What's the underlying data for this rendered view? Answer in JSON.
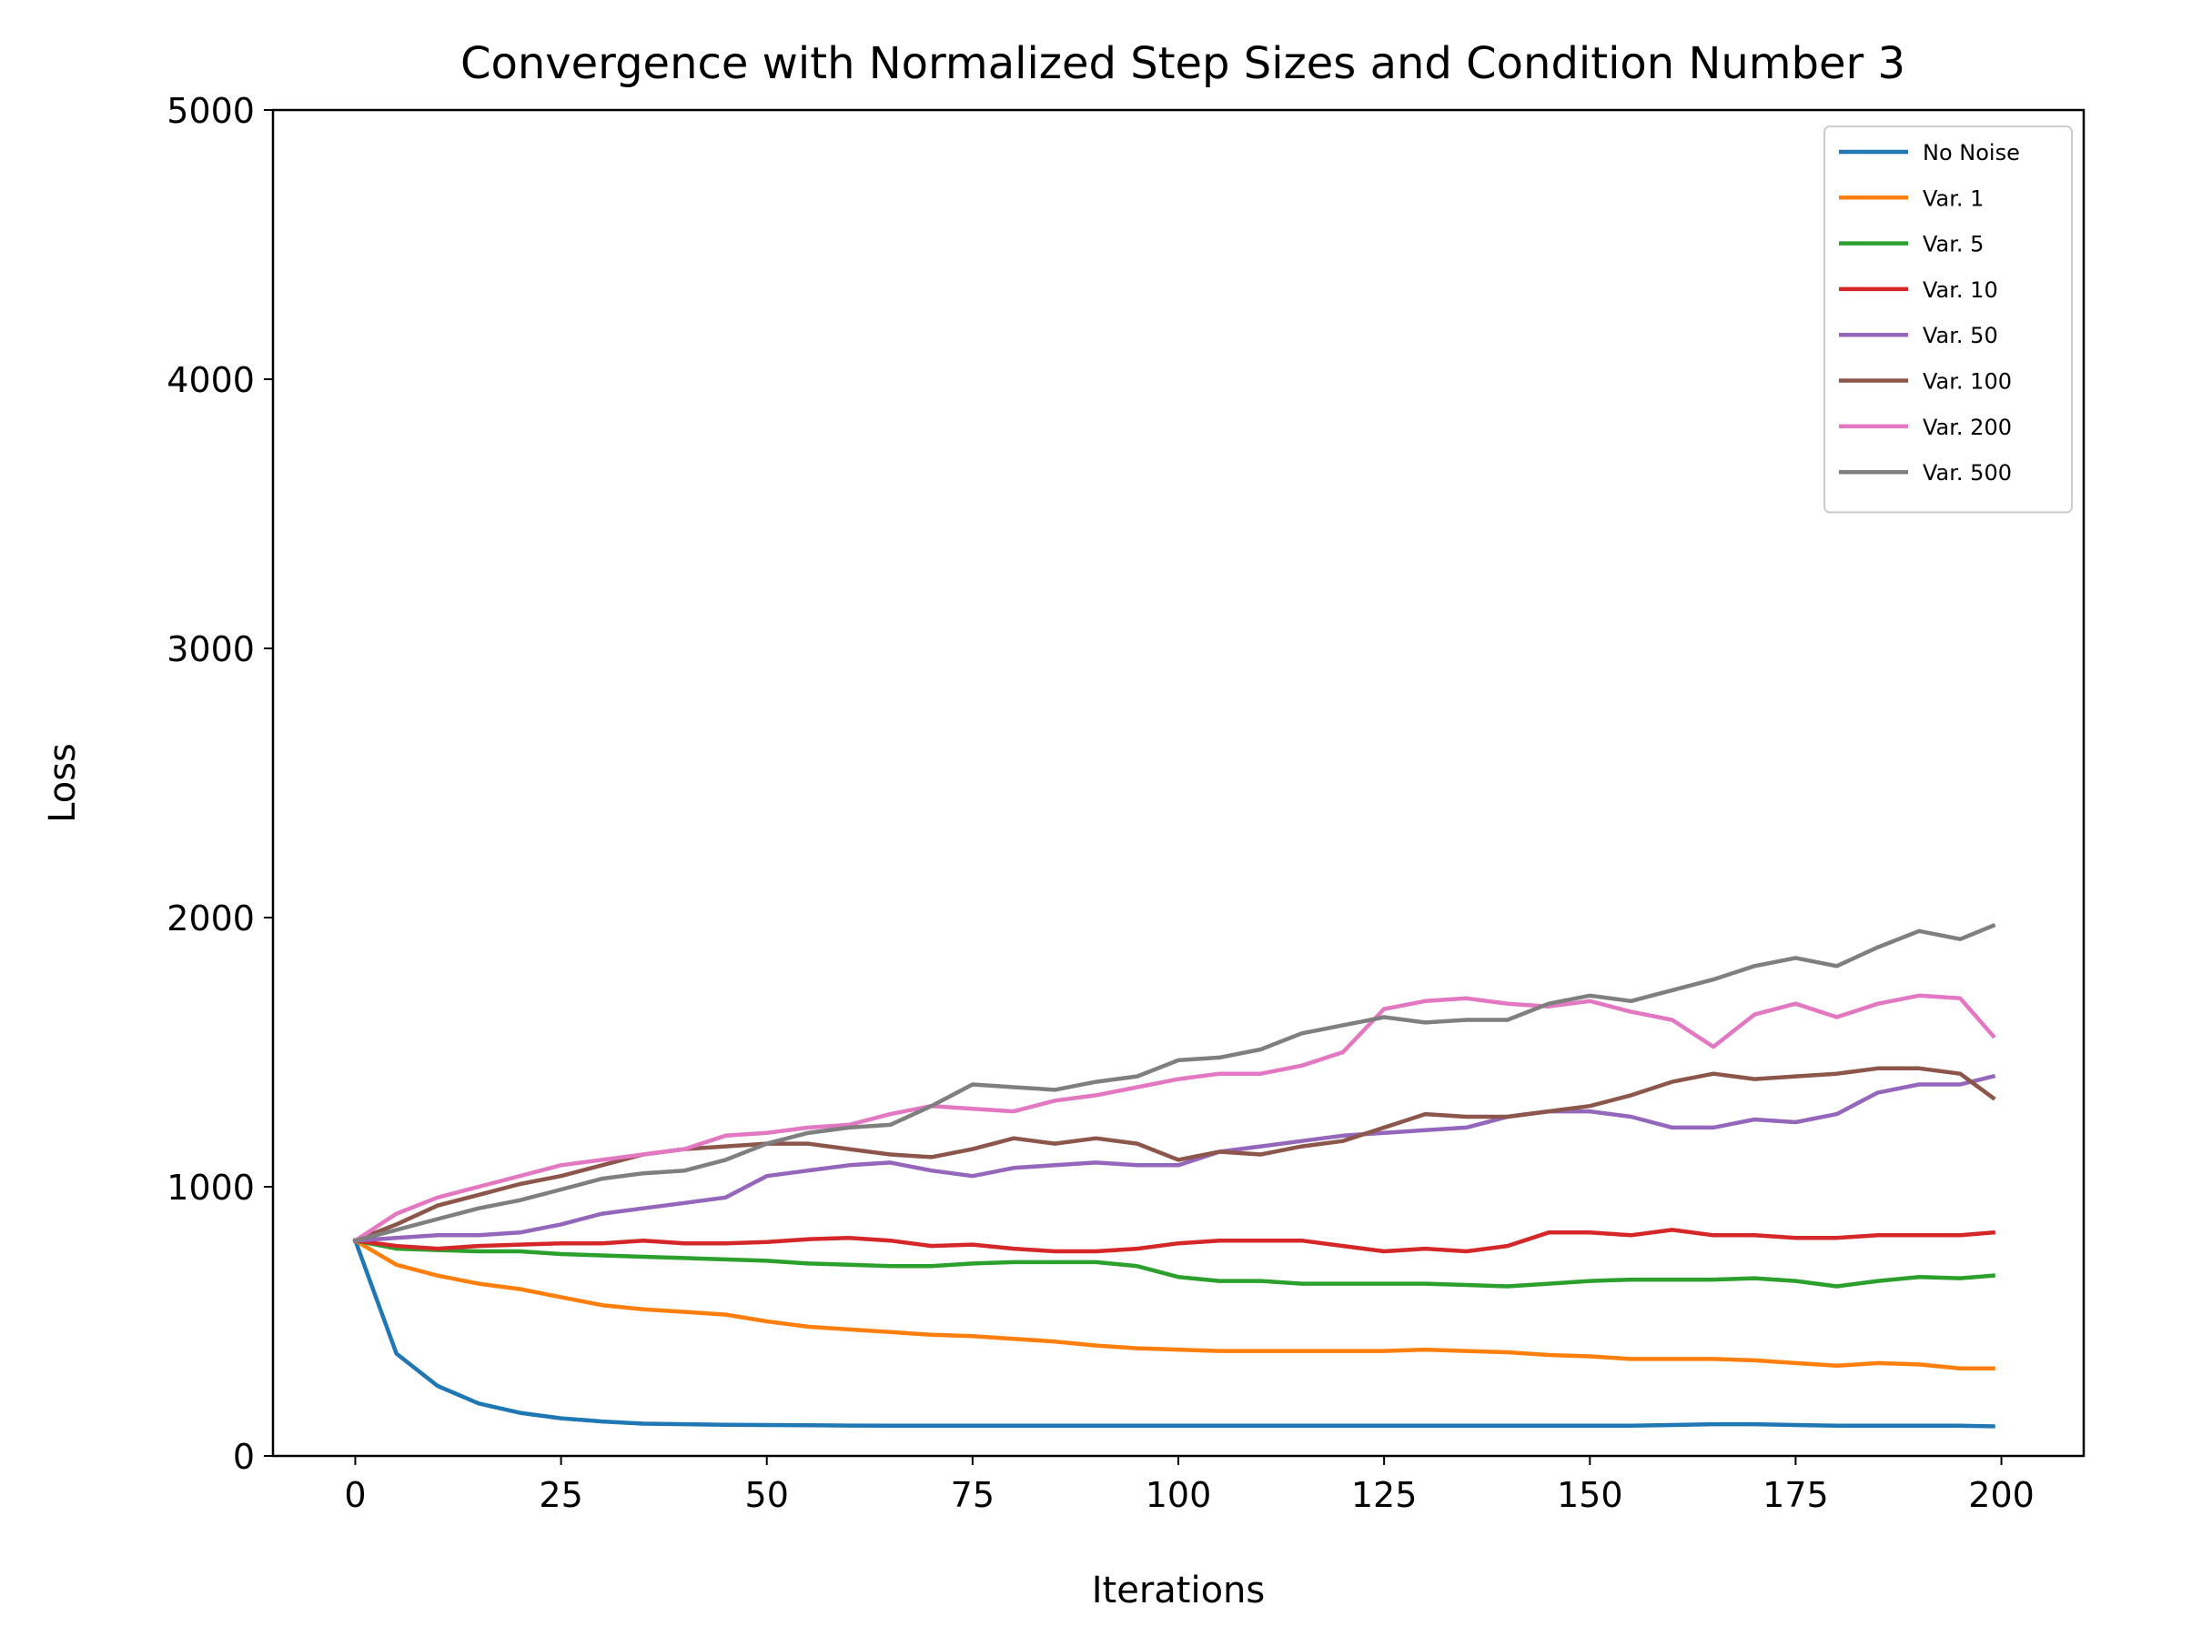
{
  "chart_data": {
    "type": "line",
    "title": "Convergence with Normalized Step Sizes and Condition Number 3",
    "xlabel": "Iterations",
    "ylabel": "Loss",
    "xlim": [
      -10,
      210
    ],
    "ylim": [
      0,
      5000
    ],
    "xticks": [
      0,
      25,
      50,
      75,
      100,
      125,
      150,
      175,
      200
    ],
    "yticks": [
      0,
      1000,
      2000,
      3000,
      4000,
      5000
    ],
    "grid": false,
    "legend_position": "top-right",
    "x": [
      0,
      5,
      10,
      15,
      20,
      25,
      30,
      35,
      40,
      45,
      50,
      55,
      60,
      65,
      70,
      75,
      80,
      85,
      90,
      95,
      100,
      105,
      110,
      115,
      120,
      125,
      130,
      135,
      140,
      145,
      150,
      155,
      160,
      165,
      170,
      175,
      180,
      185,
      190,
      195,
      199
    ],
    "series": [
      {
        "name": "No Noise",
        "color": "#1f77b4",
        "values": [
          800,
          380,
          260,
          195,
          160,
          140,
          128,
          120,
          118,
          116,
          115,
          114,
          113,
          112,
          112,
          112,
          112,
          112,
          112,
          112,
          112,
          112,
          112,
          112,
          112,
          112,
          112,
          112,
          112,
          112,
          112,
          112,
          115,
          118,
          118,
          115,
          112,
          112,
          112,
          112,
          110
        ]
      },
      {
        "name": "Var. 1",
        "color": "#ff7f0e",
        "values": [
          800,
          710,
          670,
          640,
          620,
          590,
          560,
          545,
          535,
          525,
          500,
          480,
          470,
          460,
          450,
          445,
          435,
          425,
          410,
          400,
          395,
          390,
          390,
          390,
          390,
          390,
          395,
          390,
          385,
          375,
          370,
          360,
          360,
          360,
          355,
          345,
          335,
          345,
          340,
          325,
          325
        ]
      },
      {
        "name": "Var. 5",
        "color": "#2ca02c",
        "values": [
          800,
          770,
          765,
          760,
          760,
          750,
          745,
          740,
          735,
          730,
          725,
          715,
          710,
          705,
          705,
          715,
          720,
          720,
          720,
          705,
          665,
          650,
          650,
          640,
          640,
          640,
          640,
          635,
          630,
          640,
          650,
          655,
          655,
          655,
          660,
          650,
          630,
          650,
          665,
          660,
          670
        ]
      },
      {
        "name": "Var. 10",
        "color": "#d62728",
        "values": [
          800,
          780,
          770,
          780,
          785,
          790,
          790,
          800,
          790,
          790,
          795,
          805,
          810,
          800,
          780,
          785,
          770,
          760,
          760,
          770,
          790,
          800,
          800,
          800,
          780,
          760,
          770,
          760,
          780,
          830,
          830,
          820,
          840,
          820,
          820,
          810,
          810,
          820,
          820,
          820,
          830
        ]
      },
      {
        "name": "Var. 50",
        "color": "#9467bd",
        "values": [
          800,
          810,
          820,
          820,
          830,
          860,
          900,
          920,
          940,
          960,
          1040,
          1060,
          1080,
          1090,
          1060,
          1040,
          1070,
          1080,
          1090,
          1080,
          1080,
          1130,
          1150,
          1170,
          1190,
          1200,
          1210,
          1220,
          1260,
          1280,
          1280,
          1260,
          1220,
          1220,
          1250,
          1240,
          1270,
          1350,
          1380,
          1380,
          1410
        ]
      },
      {
        "name": "Var. 100",
        "color": "#8c564b",
        "values": [
          800,
          860,
          930,
          970,
          1010,
          1040,
          1080,
          1120,
          1140,
          1150,
          1160,
          1160,
          1140,
          1120,
          1110,
          1140,
          1180,
          1160,
          1180,
          1160,
          1100,
          1130,
          1120,
          1150,
          1170,
          1220,
          1270,
          1260,
          1260,
          1280,
          1300,
          1340,
          1390,
          1420,
          1400,
          1410,
          1420,
          1440,
          1440,
          1420,
          1330
        ]
      },
      {
        "name": "Var. 200",
        "color": "#e377c2",
        "values": [
          800,
          900,
          960,
          1000,
          1040,
          1080,
          1100,
          1120,
          1140,
          1190,
          1200,
          1220,
          1230,
          1270,
          1300,
          1290,
          1280,
          1320,
          1340,
          1370,
          1400,
          1420,
          1420,
          1450,
          1500,
          1660,
          1690,
          1700,
          1680,
          1670,
          1690,
          1650,
          1620,
          1520,
          1640,
          1680,
          1630,
          1680,
          1710,
          1700,
          1560
        ]
      },
      {
        "name": "Var. 500",
        "color": "#7f7f7f",
        "values": [
          800,
          840,
          880,
          920,
          950,
          990,
          1030,
          1050,
          1060,
          1100,
          1160,
          1200,
          1220,
          1230,
          1300,
          1380,
          1370,
          1360,
          1390,
          1410,
          1470,
          1480,
          1510,
          1570,
          1600,
          1630,
          1610,
          1620,
          1620,
          1680,
          1710,
          1690,
          1730,
          1770,
          1820,
          1850,
          1820,
          1890,
          1950,
          1920,
          1970
        ]
      }
    ]
  }
}
